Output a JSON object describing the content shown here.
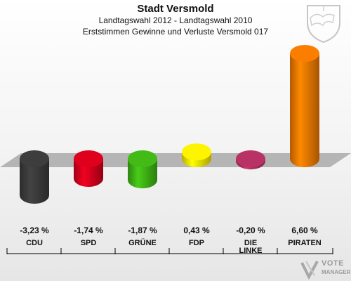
{
  "header": {
    "title": "Stadt Versmold",
    "subtitle": "Landtagswahl 2012 - Landtagswahl 2010",
    "subtitle2": "Erststimmen Gewinne und Verluste Versmold 017"
  },
  "watermark": {
    "line1": "VOTE",
    "line2": "MANAGER"
  },
  "chart_data": {
    "type": "bar",
    "title": "Stadt Versmold",
    "subtitle": "Landtagswahl 2012 - Landtagswahl 2010",
    "categories": [
      "CDU",
      "SPD",
      "GRÜNE",
      "FDP",
      "DIE LINKE",
      "PIRATEN"
    ],
    "values": [
      -3.23,
      -1.74,
      -1.87,
      0.43,
      -0.2,
      6.6
    ],
    "value_labels": [
      "-3,23 %",
      "-1,74 %",
      "-1,87 %",
      "0,43 %",
      "-0,20 %",
      "6,60 %"
    ],
    "colors": [
      "#3a3a3a",
      "#d4001d",
      "#3fb215",
      "#f5e800",
      "#b03060",
      "#f07800"
    ],
    "ylim": [
      -3.5,
      7
    ],
    "unit": "%",
    "grid": false,
    "legend": "none"
  }
}
